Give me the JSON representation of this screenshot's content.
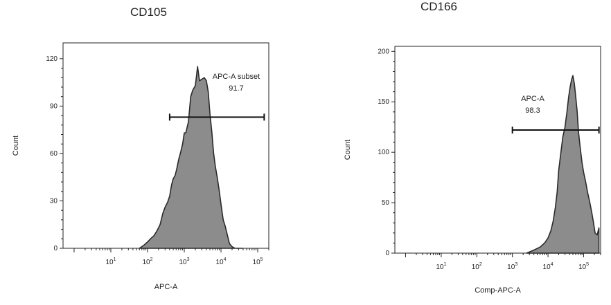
{
  "colors": {
    "fill": "#8c8c8c",
    "stroke": "#2a2a2a",
    "axis": "#222222"
  },
  "chart_data": [
    {
      "type": "area",
      "title": "CD105",
      "xlabel": "APC-A",
      "ylabel": "Count",
      "xscale": "log",
      "xlim": [
        0.5,
        200000
      ],
      "ylim": [
        0,
        130
      ],
      "xticks": [
        10,
        100,
        1000,
        10000,
        100000
      ],
      "xtick_labels": [
        {
          "base": "10",
          "exp": "1"
        },
        {
          "base": "10",
          "exp": "2"
        },
        {
          "base": "10",
          "exp": "3"
        },
        {
          "base": "10",
          "exp": "4"
        },
        {
          "base": "10",
          "exp": "5"
        }
      ],
      "yticks": [
        0,
        30,
        60,
        90,
        120
      ],
      "ytick_labels": [
        "0",
        "30",
        "60",
        "90",
        "120"
      ],
      "x": [
        60,
        80,
        100,
        120,
        150,
        180,
        220,
        260,
        300,
        350,
        400,
        450,
        500,
        560,
        620,
        700,
        800,
        900,
        1000,
        1100,
        1300,
        1500,
        1700,
        2000,
        2300,
        2600,
        3000,
        3500,
        4000,
        4500,
        5000,
        5600,
        6300,
        7000,
        8000,
        9000,
        10000,
        11500,
        13000,
        15000,
        17000,
        20000,
        24000,
        28000,
        32000,
        38000
      ],
      "y": [
        0,
        2,
        4,
        6,
        8,
        11,
        15,
        22,
        26,
        29,
        33,
        40,
        44,
        46,
        50,
        56,
        61,
        66,
        73,
        73,
        80,
        96,
        100,
        103,
        115,
        106,
        107,
        108,
        106,
        99,
        85,
        74,
        60,
        52,
        44,
        36,
        28,
        18,
        14,
        8,
        3,
        1,
        0,
        0,
        0,
        0
      ],
      "gate": {
        "label": "APC-A subset",
        "value": "91.7",
        "x_start": 400,
        "x_end": 150000,
        "y": 83
      }
    },
    {
      "type": "area",
      "title": "CD166",
      "xlabel": "Comp-APC-A",
      "ylabel": "Count",
      "xscale": "log",
      "xlim": [
        0.5,
        300000
      ],
      "ylim": [
        0,
        205
      ],
      "xticks": [
        10,
        100,
        1000,
        10000,
        100000
      ],
      "xtick_labels": [
        {
          "base": "10",
          "exp": "1"
        },
        {
          "base": "10",
          "exp": "2"
        },
        {
          "base": "10",
          "exp": "3"
        },
        {
          "base": "10",
          "exp": "4"
        },
        {
          "base": "10",
          "exp": "5"
        }
      ],
      "yticks": [
        0,
        50,
        100,
        150,
        200
      ],
      "ytick_labels": [
        "0",
        "50",
        "100",
        "150",
        "200"
      ],
      "x": [
        2500,
        4000,
        6000,
        8000,
        10000,
        12000,
        14000,
        16000,
        18000,
        20000,
        23000,
        26000,
        30000,
        34000,
        38000,
        42000,
        46000,
        50000,
        55000,
        60000,
        66000,
        72000,
        80000,
        90000,
        100000,
        115000,
        130000,
        150000,
        170000,
        190000,
        210000,
        240000,
        270000
      ],
      "y": [
        0,
        3,
        6,
        10,
        15,
        22,
        32,
        45,
        60,
        82,
        100,
        115,
        125,
        140,
        155,
        165,
        172,
        176,
        168,
        155,
        140,
        120,
        105,
        90,
        80,
        70,
        60,
        50,
        40,
        30,
        20,
        18,
        25
      ],
      "gate": {
        "label": "APC-A",
        "value": "98.3",
        "x_start": 1000,
        "x_end": 270000,
        "y": 122
      }
    }
  ]
}
